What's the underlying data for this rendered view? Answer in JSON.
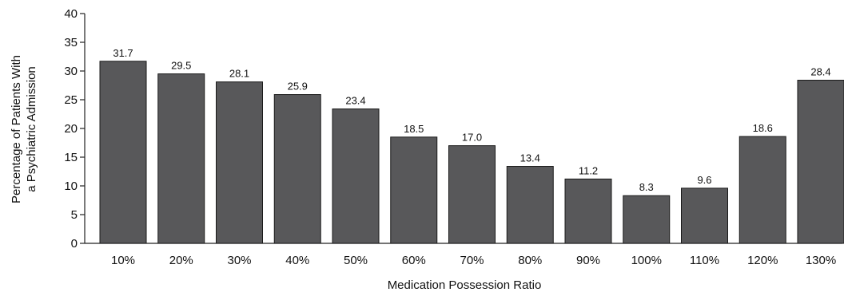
{
  "chart_data": {
    "type": "bar",
    "categories": [
      "10%",
      "20%",
      "30%",
      "40%",
      "50%",
      "60%",
      "70%",
      "80%",
      "90%",
      "100%",
      "110%",
      "120%",
      "130%"
    ],
    "values": [
      31.7,
      29.5,
      28.1,
      25.9,
      23.4,
      18.5,
      17.0,
      13.4,
      11.2,
      8.3,
      9.6,
      18.6,
      28.4
    ],
    "value_labels": [
      "31.7",
      "29.5",
      "28.1",
      "25.9",
      "23.4",
      "18.5",
      "17.0",
      "13.4",
      "11.2",
      "8.3",
      "9.6",
      "18.6",
      "28.4"
    ],
    "xlabel": "Medication Possession Ratio",
    "ylabel_lines": [
      "Percentage of Patients With",
      "a Psychiatric Admission"
    ],
    "ylim": [
      0,
      40
    ],
    "yticks": [
      0,
      5,
      10,
      15,
      20,
      25,
      30,
      35,
      40
    ],
    "grid": false,
    "legend": "none",
    "colors": {
      "bar": "#58585a",
      "bar_stroke": "#1a1a1a",
      "axis": "#222222",
      "text": "#111111"
    }
  }
}
